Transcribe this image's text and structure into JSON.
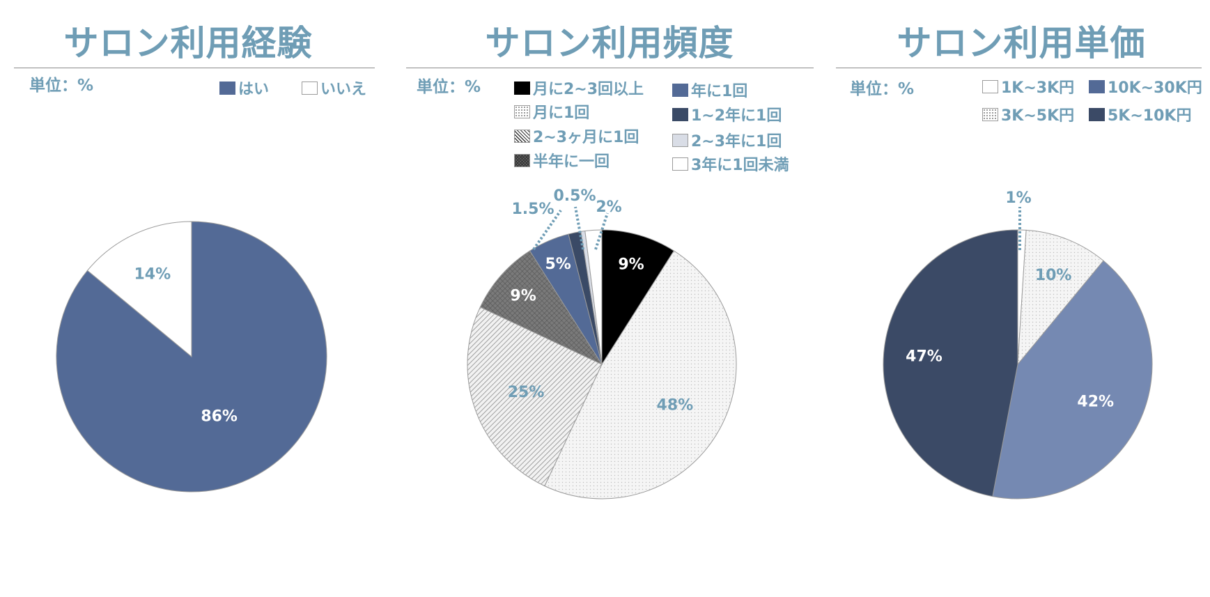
{
  "chart_data": [
    {
      "type": "pie",
      "title": "サロン利用経験",
      "unit_label": "単位：%",
      "legend_position": "top-right",
      "categories": [
        "はい",
        "いいえ"
      ],
      "values": [
        86,
        14
      ],
      "value_labels": [
        "86%",
        "14%"
      ],
      "colors": [
        "#536a96",
        "#ffffff"
      ],
      "label_colors": [
        "#ffffff",
        "#6f9db5"
      ],
      "patterns": [
        "solid",
        "solid"
      ]
    },
    {
      "type": "pie",
      "title": "サロン利用頻度",
      "unit_label": "単位：%",
      "legend_position": "top",
      "categories": [
        "月に2~3回以上",
        "月に1回",
        "2~3ヶ月に1回",
        "半年に一回",
        "年に1回",
        "1~2年に1回",
        "2~3年に1回",
        "3年に1回未満"
      ],
      "values": [
        9,
        48,
        25,
        9,
        5,
        1.5,
        0.5,
        2
      ],
      "value_labels": [
        "9%",
        "48%",
        "25%",
        "9%",
        "5%",
        "1.5%",
        "0.5%",
        "2%"
      ],
      "colors": [
        "#000000",
        "#f3f3f3",
        "#e6e6e6",
        "#707070",
        "#536a96",
        "#3a4a66",
        "#d9dde6",
        "#ffffff"
      ],
      "label_colors": [
        "#ffffff",
        "#6f9db5",
        "#6f9db5",
        "#ffffff",
        "#ffffff",
        "#6f9db5",
        "#6f9db5",
        "#6f9db5"
      ],
      "patterns": [
        "solid",
        "dots",
        "hatch",
        "crosshatch",
        "solid",
        "solid",
        "solid",
        "solid"
      ]
    },
    {
      "type": "pie",
      "title": "サロン利用単価",
      "unit_label": "単位：%",
      "legend_position": "top-right",
      "categories": [
        "1K~3K円",
        "3K~5K円",
        "10K~30K円",
        "5K~10K円"
      ],
      "values": [
        1,
        10,
        42,
        47
      ],
      "value_labels": [
        "1%",
        "10%",
        "42%",
        "47%"
      ],
      "colors": [
        "#ffffff",
        "#f5f5f5",
        "#7589b2",
        "#3b4a66"
      ],
      "label_colors": [
        "#6f9db5",
        "#6f9db5",
        "#ffffff",
        "#ffffff"
      ],
      "patterns": [
        "solid",
        "dots",
        "solid",
        "solid"
      ]
    }
  ]
}
